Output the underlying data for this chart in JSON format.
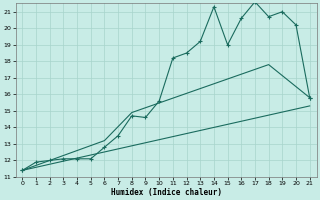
{
  "xlabel": "Humidex (Indice chaleur)",
  "xlim": [
    -0.5,
    21.5
  ],
  "ylim": [
    11,
    21.5
  ],
  "xticks": [
    0,
    1,
    2,
    3,
    4,
    5,
    6,
    7,
    8,
    9,
    10,
    11,
    12,
    13,
    14,
    15,
    16,
    17,
    18,
    19,
    20,
    21
  ],
  "yticks": [
    11,
    12,
    13,
    14,
    15,
    16,
    17,
    18,
    19,
    20,
    21
  ],
  "background_color": "#c8ece6",
  "grid_color": "#a8d4cc",
  "line_color": "#1a6b5e",
  "line1_x": [
    0,
    1,
    2,
    3,
    4,
    5,
    6,
    7,
    8,
    9,
    10,
    11,
    12,
    13,
    14,
    15,
    16,
    17,
    18,
    19,
    20,
    21
  ],
  "line1_y": [
    11.4,
    11.9,
    12.0,
    12.1,
    12.1,
    12.1,
    12.8,
    13.5,
    14.7,
    14.6,
    15.6,
    18.2,
    18.5,
    19.2,
    21.3,
    19.0,
    20.6,
    21.6,
    20.7,
    21.0,
    20.2,
    15.8
  ],
  "line2_x": [
    0,
    6,
    8,
    18,
    21
  ],
  "line2_y": [
    11.4,
    13.2,
    14.9,
    17.8,
    15.8
  ],
  "line3_x": [
    0,
    21
  ],
  "line3_y": [
    11.4,
    15.3
  ]
}
